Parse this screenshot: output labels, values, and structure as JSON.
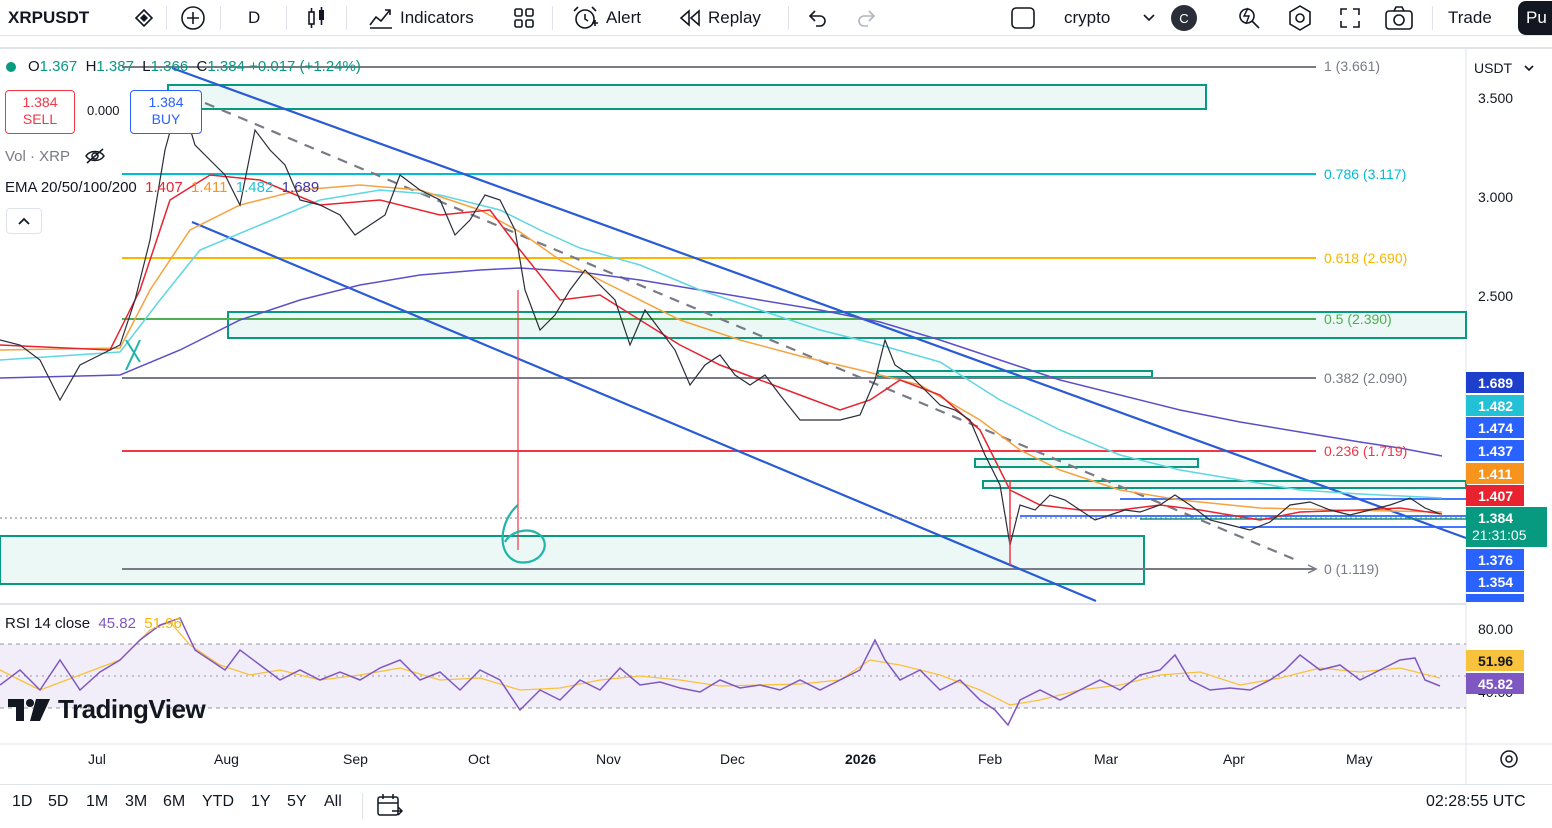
{
  "toolbar": {
    "symbol": "XRPUSDT",
    "interval": "D",
    "indicators_label": "Indicators",
    "alert_label": "Alert",
    "replay_label": "Replay",
    "layout_name": "crypto",
    "avatar_letter": "C",
    "trade_label": "Trade",
    "publish_label": "Pu"
  },
  "legend": {
    "ohlc": {
      "o_label": "O",
      "o": "1.367",
      "h_label": "H",
      "h": "1.387",
      "l_label": "L",
      "l": "1.366",
      "c_label": "C",
      "c": "1.384",
      "change": "+0.017 (+1.24%)"
    },
    "sell_price": "1.384",
    "sell_label": "SELL",
    "spread": "0.000",
    "buy_price": "1.384",
    "buy_label": "BUY",
    "vol_label": "Vol · XRP",
    "ema_label": "EMA 20/50/100/200",
    "ema20": "1.407",
    "ema50": "1.411",
    "ema100": "1.482",
    "ema200": "1.689",
    "rsi_label": "RSI 14 close",
    "rsi_value": "45.82",
    "rsi_ma": "51.96"
  },
  "price_axis": {
    "currency": "USDT",
    "ticks": [
      "3.500",
      "3.000",
      "2.500"
    ]
  },
  "fib_levels": [
    {
      "label": "1 (3.661)",
      "color": "#787b86"
    },
    {
      "label": "0.786 (3.117)",
      "color": "#00bcd4"
    },
    {
      "label": "0.618 (2.690)",
      "color": "#f9b600"
    },
    {
      "label": "0.5 (2.390)",
      "color": "#4caf50"
    },
    {
      "label": "0.382 (2.090)",
      "color": "#787b86"
    },
    {
      "label": "0.236 (1.719)",
      "color": "#f23645"
    },
    {
      "label": "0 (1.119)",
      "color": "#787b86"
    }
  ],
  "price_tags": [
    {
      "value": "1.689",
      "color": "#1e3fcc"
    },
    {
      "value": "1.482",
      "color": "#22c1d6"
    },
    {
      "value": "1.474",
      "color": "#2962ff"
    },
    {
      "value": "1.437",
      "color": "#2962ff"
    },
    {
      "value": "1.411",
      "color": "#f7941d"
    },
    {
      "value": "1.407",
      "color": "#e8232f"
    },
    {
      "value": "1.376",
      "color": "#2962ff"
    },
    {
      "value": "1.354",
      "color": "#2962ff"
    }
  ],
  "current_price": {
    "value": "1.384",
    "countdown": "21:31:05",
    "color": "#089981"
  },
  "rsi_axis": {
    "ticks": [
      "80.00",
      "40.00"
    ],
    "rsi_ma_tag": "51.96",
    "rsi_tag": "45.82"
  },
  "time_axis": [
    "Jul",
    "Aug",
    "Sep",
    "Oct",
    "Nov",
    "Dec",
    "2026",
    "Feb",
    "Mar",
    "Apr",
    "May"
  ],
  "annotation_text": "6",
  "watermark": "TradingView",
  "bottom": {
    "ranges": [
      "1D",
      "5D",
      "1M",
      "3M",
      "6M",
      "YTD",
      "1Y",
      "5Y",
      "All"
    ],
    "clock": "02:28:55 UTC"
  }
}
